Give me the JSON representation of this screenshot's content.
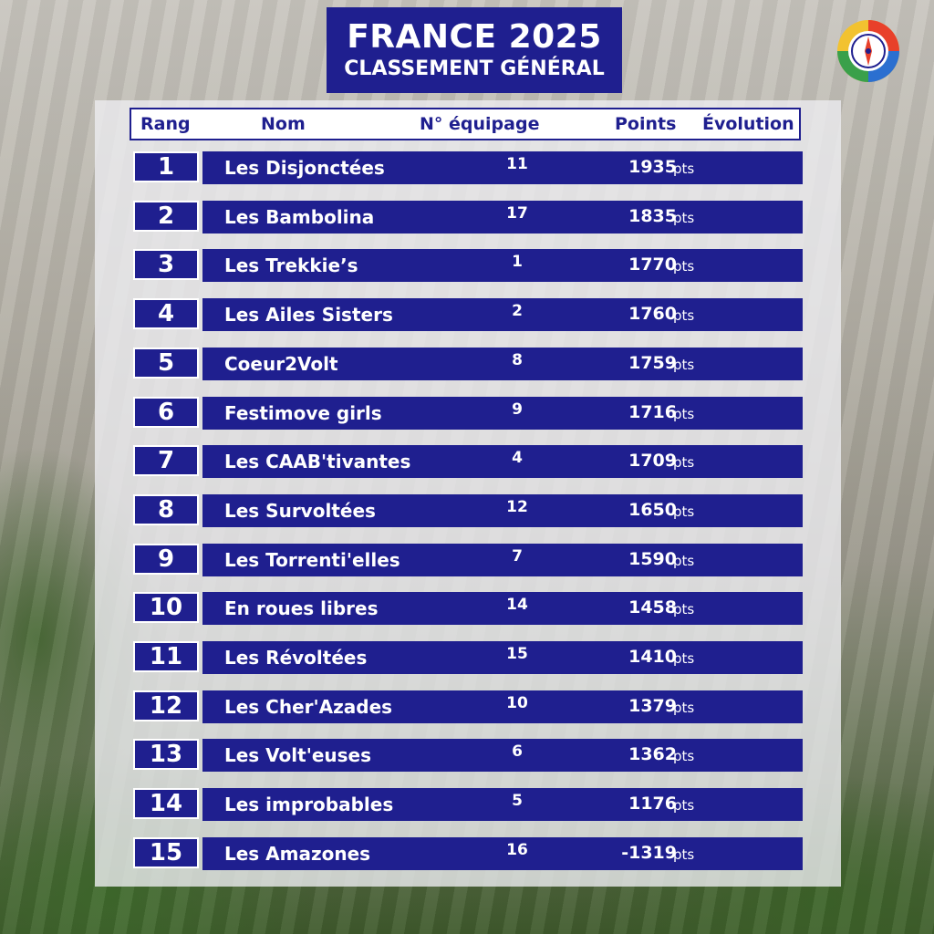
{
  "title": "FRANCE 2025",
  "subtitle": "CLASSEMENT GÉNÉRAL",
  "header": {
    "rank": "Rang",
    "name": "Nom",
    "crew": "N° équipage",
    "points": "Points",
    "evolution": "Évolution"
  },
  "unit": "pts",
  "colors": {
    "navy": "#1f1f8f",
    "white": "#ffffff"
  },
  "rows": [
    {
      "rank": "1",
      "name": "Les Disjonctées",
      "crew": "11",
      "points": "1935"
    },
    {
      "rank": "2",
      "name": "Les Bambolina",
      "crew": "17",
      "points": "1835"
    },
    {
      "rank": "3",
      "name": "Les Trekkie’s",
      "crew": "1",
      "points": "1770"
    },
    {
      "rank": "4",
      "name": "Les Ailes Sisters",
      "crew": "2",
      "points": "1760"
    },
    {
      "rank": "5",
      "name": "Coeur2Volt",
      "crew": "8",
      "points": "1759"
    },
    {
      "rank": "6",
      "name": "Festimove girls",
      "crew": "9",
      "points": "1716"
    },
    {
      "rank": "7",
      "name": "Les CAAB'tivantes",
      "crew": "4",
      "points": "1709"
    },
    {
      "rank": "8",
      "name": "Les Survoltées",
      "crew": "12",
      "points": "1650"
    },
    {
      "rank": "9",
      "name": "Les Torrenti'elles",
      "crew": "7",
      "points": "1590"
    },
    {
      "rank": "10",
      "name": "En roues libres",
      "crew": "14",
      "points": "1458"
    },
    {
      "rank": "11",
      "name": "Les Révoltées",
      "crew": "15",
      "points": "1410"
    },
    {
      "rank": "12",
      "name": "Les Cher'Azades",
      "crew": "10",
      "points": "1379"
    },
    {
      "rank": "13",
      "name": "Les Volt'euses",
      "crew": "6",
      "points": "1362"
    },
    {
      "rank": "14",
      "name": "Les improbables",
      "crew": "5",
      "points": "1176"
    },
    {
      "rank": "15",
      "name": "Les Amazones",
      "crew": "16",
      "points": "-1319"
    }
  ]
}
